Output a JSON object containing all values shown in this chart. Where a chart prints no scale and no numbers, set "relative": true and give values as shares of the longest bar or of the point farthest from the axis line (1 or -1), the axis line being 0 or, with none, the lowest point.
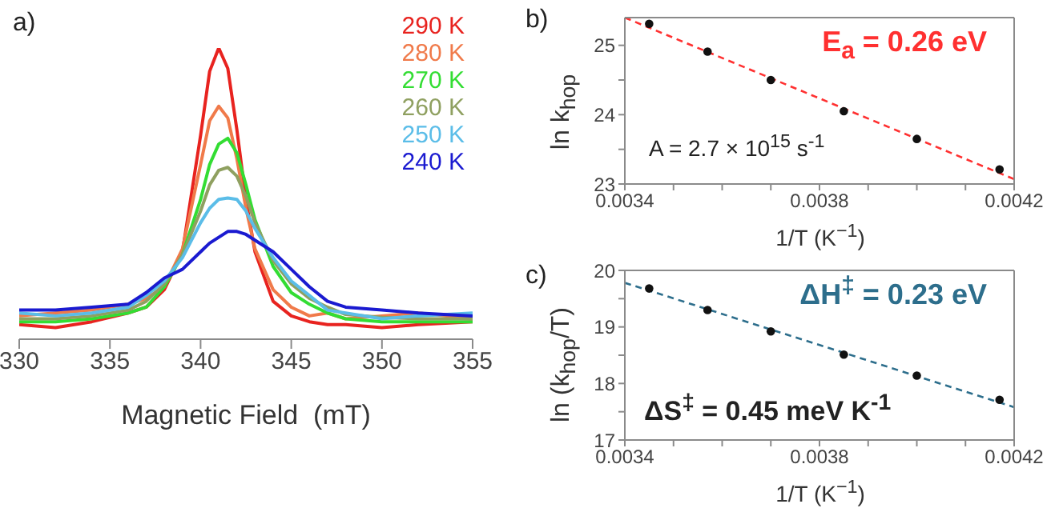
{
  "chart_data": [
    {
      "type": "line",
      "title": "a)",
      "xlabel": "Magnetic Field  (mT)",
      "relative": true,
      "legend": "top right",
      "marker": "none",
      "xlim": [
        330,
        355
      ],
      "xticks": [
        330,
        335,
        340,
        345,
        350,
        355
      ],
      "x": [
        330,
        332,
        334,
        336,
        337,
        338,
        339,
        340,
        340.5,
        341,
        341.5,
        342,
        342.5,
        343,
        344,
        345,
        346,
        347,
        348,
        350,
        352,
        355
      ],
      "series": [
        {
          "name": "290 K",
          "color": "#e8231f",
          "values": [
            0.05,
            0.04,
            0.06,
            0.09,
            0.11,
            0.17,
            0.3,
            0.7,
            0.92,
            1.0,
            0.93,
            0.72,
            0.48,
            0.3,
            0.13,
            0.08,
            0.06,
            0.05,
            0.05,
            0.04,
            0.05,
            0.06
          ]
        },
        {
          "name": "280 K",
          "color": "#f07a4a",
          "values": [
            0.08,
            0.09,
            0.1,
            0.12,
            0.14,
            0.18,
            0.31,
            0.6,
            0.75,
            0.8,
            0.76,
            0.62,
            0.45,
            0.31,
            0.17,
            0.11,
            0.08,
            0.09,
            0.07,
            0.08,
            0.09,
            0.07
          ]
        },
        {
          "name": "270 K",
          "color": "#33dd33",
          "values": [
            0.06,
            0.06,
            0.07,
            0.09,
            0.11,
            0.18,
            0.29,
            0.48,
            0.6,
            0.67,
            0.69,
            0.64,
            0.53,
            0.41,
            0.25,
            0.16,
            0.12,
            0.09,
            0.07,
            0.06,
            0.06,
            0.06
          ]
        },
        {
          "name": "260 K",
          "color": "#8fa060",
          "values": [
            0.07,
            0.07,
            0.08,
            0.1,
            0.13,
            0.19,
            0.29,
            0.44,
            0.53,
            0.58,
            0.59,
            0.56,
            0.49,
            0.4,
            0.27,
            0.19,
            0.14,
            0.11,
            0.085,
            0.075,
            0.07,
            0.07
          ]
        },
        {
          "name": "250 K",
          "color": "#5bbde8",
          "values": [
            0.09,
            0.08,
            0.09,
            0.11,
            0.15,
            0.2,
            0.28,
            0.4,
            0.45,
            0.48,
            0.485,
            0.48,
            0.44,
            0.38,
            0.28,
            0.2,
            0.15,
            0.1,
            0.09,
            0.07,
            0.08,
            0.09
          ]
        },
        {
          "name": "240 K",
          "color": "#1a1ad0",
          "values": [
            0.1,
            0.1,
            0.11,
            0.12,
            0.16,
            0.21,
            0.24,
            0.3,
            0.33,
            0.35,
            0.37,
            0.37,
            0.36,
            0.34,
            0.3,
            0.24,
            0.18,
            0.13,
            0.11,
            0.1,
            0.09,
            0.08
          ]
        }
      ]
    },
    {
      "type": "scatter",
      "title": "b)",
      "xlabel": "1/T (K$^{−1}$)",
      "ylabel": "ln k$_{hop}$",
      "marker": "circle",
      "xlim": [
        0.0034,
        0.0042
      ],
      "ylim": [
        23,
        25.4
      ],
      "xticks": [
        0.0034,
        {
          "value": 0.0035,
          "label": null
        },
        {
          "value": 0.0036,
          "label": null
        },
        {
          "value": 0.0037,
          "label": null
        },
        0.0038,
        {
          "value": 0.0039,
          "label": null
        },
        {
          "value": 0.004,
          "label": null
        },
        {
          "value": 0.0041,
          "label": null
        },
        0.0042
      ],
      "yticks": [
        23,
        {
          "value": 23.5,
          "label": null
        },
        24,
        {
          "value": 24.5,
          "label": null
        },
        25
      ],
      "annotations": [
        "E$_{a}$ = 0.26 eV",
        "A = 2.7 × 10$^{15}$ s$^{-1}$"
      ],
      "series": [
        {
          "color": "#111111",
          "x": [
            0.00345,
            0.00357,
            0.0037,
            0.00385,
            0.004,
            0.00417
          ],
          "values": [
            25.31,
            24.91,
            24.5,
            24.05,
            23.65,
            23.21
          ]
        },
        {
          "type": "line",
          "color": "#ff3030",
          "line_style": "dashed",
          "marker": "none",
          "x": [
            0.0034,
            0.0042
          ],
          "values": [
            25.4,
            23.07
          ]
        }
      ]
    },
    {
      "type": "scatter",
      "title": "c)",
      "xlabel": "1/T (K$^{−1}$)",
      "ylabel": "ln (k$_{hop}$/T)",
      "marker": "circle",
      "xlim": [
        0.0034,
        0.0042
      ],
      "ylim": [
        17,
        20
      ],
      "xticks": [
        0.0034,
        {
          "value": 0.0035,
          "label": null
        },
        {
          "value": 0.0036,
          "label": null
        },
        {
          "value": 0.0037,
          "label": null
        },
        0.0038,
        {
          "value": 0.0039,
          "label": null
        },
        {
          "value": 0.004,
          "label": null
        },
        {
          "value": 0.0041,
          "label": null
        },
        0.0042
      ],
      "yticks": [
        17,
        {
          "value": 17.5,
          "label": null
        },
        18,
        {
          "value": 18.5,
          "label": null
        },
        19,
        {
          "value": 19.5,
          "label": null
        },
        20
      ],
      "annotations": [
        "ΔH$^{‡}$ = 0.23 eV",
        "ΔS$^{‡}$ = 0.45 meV K$^{-1}$"
      ],
      "series": [
        {
          "color": "#111111",
          "x": [
            0.00345,
            0.00357,
            0.0037,
            0.00385,
            0.004,
            0.00417
          ],
          "values": [
            19.68,
            19.3,
            18.92,
            18.51,
            18.14,
            17.71
          ]
        },
        {
          "type": "line",
          "color": "#2d6e8c",
          "line_style": "dashed",
          "marker": "none",
          "x": [
            0.0034,
            0.0042
          ],
          "values": [
            19.78,
            17.58
          ]
        }
      ]
    }
  ]
}
